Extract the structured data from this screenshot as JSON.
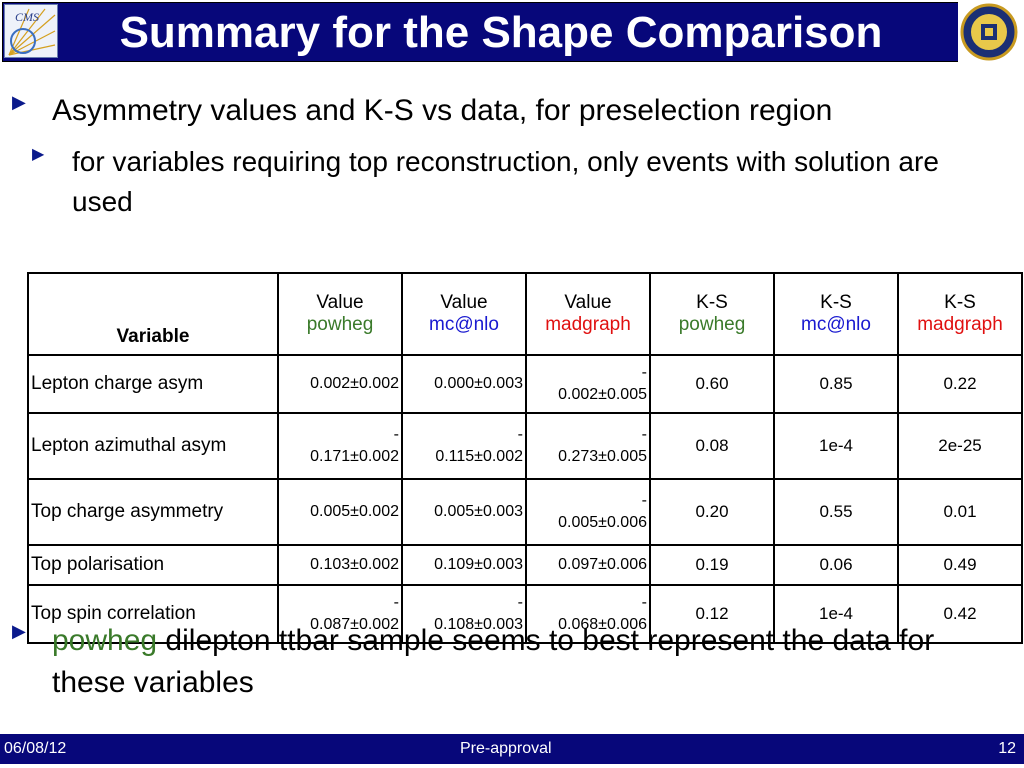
{
  "title": "Summary for the Shape Comparison",
  "bullets": {
    "b1": "Asymmetry values and K-S vs data, for preselection region",
    "b1_sub": "for variables requiring top reconstruction, only events with solution are used",
    "b2_highlight": "powheg",
    "b2_rest": " dilepton ttbar sample seems to best represent the data for these variables"
  },
  "table": {
    "header": {
      "variable": "Variable",
      "cols": [
        {
          "line1": "Value",
          "line2": "powheg",
          "color": "#3a7a2a"
        },
        {
          "line1": "Value",
          "line2": "mc@nlo",
          "color": "#1a1ad0"
        },
        {
          "line1": "Value",
          "line2": "madgraph",
          "color": "#e01010"
        },
        {
          "line1": "K-S",
          "line2": "powheg",
          "color": "#3a7a2a"
        },
        {
          "line1": "K-S",
          "line2": "mc@nlo",
          "color": "#1a1ad0"
        },
        {
          "line1": "K-S",
          "line2": "madgraph",
          "color": "#e01010"
        }
      ]
    },
    "rows": [
      {
        "variable": "Lepton charge asym",
        "v1": "0.002±0.002",
        "v2": "0.000±0.003",
        "v3": "-\n0.002±0.005",
        "k1": "0.60",
        "k2": "0.85",
        "k3": "0.22"
      },
      {
        "variable": "Lepton azimuthal asym",
        "v1": "-\n0.171±0.002",
        "v2": "-\n0.115±0.002",
        "v3": "-\n0.273±0.005",
        "k1": "0.08",
        "k2": "1e-4",
        "k3": "2e-25"
      },
      {
        "variable": "Top charge asymmetry",
        "v1": "0.005±0.002",
        "v2": "0.005±0.003",
        "v3": "-\n0.005±0.006",
        "k1": "0.20",
        "k2": "0.55",
        "k3": "0.01"
      },
      {
        "variable": "Top polarisation",
        "v1": "0.103±0.002",
        "v2": "0.109±0.003",
        "v3": "0.097±0.006",
        "k1": "0.19",
        "k2": "0.06",
        "k3": "0.49"
      },
      {
        "variable": "Top spin correlation",
        "v1": "-\n0.087±0.002",
        "v2": "-\n0.108±0.003",
        "v3": "-\n0.068±0.006",
        "k1": "0.12",
        "k2": "1e-4",
        "k3": "0.42"
      }
    ]
  },
  "logos": {
    "cms_text": "CMS"
  },
  "footer": {
    "date": "06/08/12",
    "center": "Pre-approval",
    "page": "12"
  },
  "colors": {
    "title_bg": "#07077a",
    "arrow": "#0b1a8c",
    "powheg": "#3a7a2a",
    "mcatnlo": "#1a1ad0",
    "madgraph": "#e01010"
  }
}
